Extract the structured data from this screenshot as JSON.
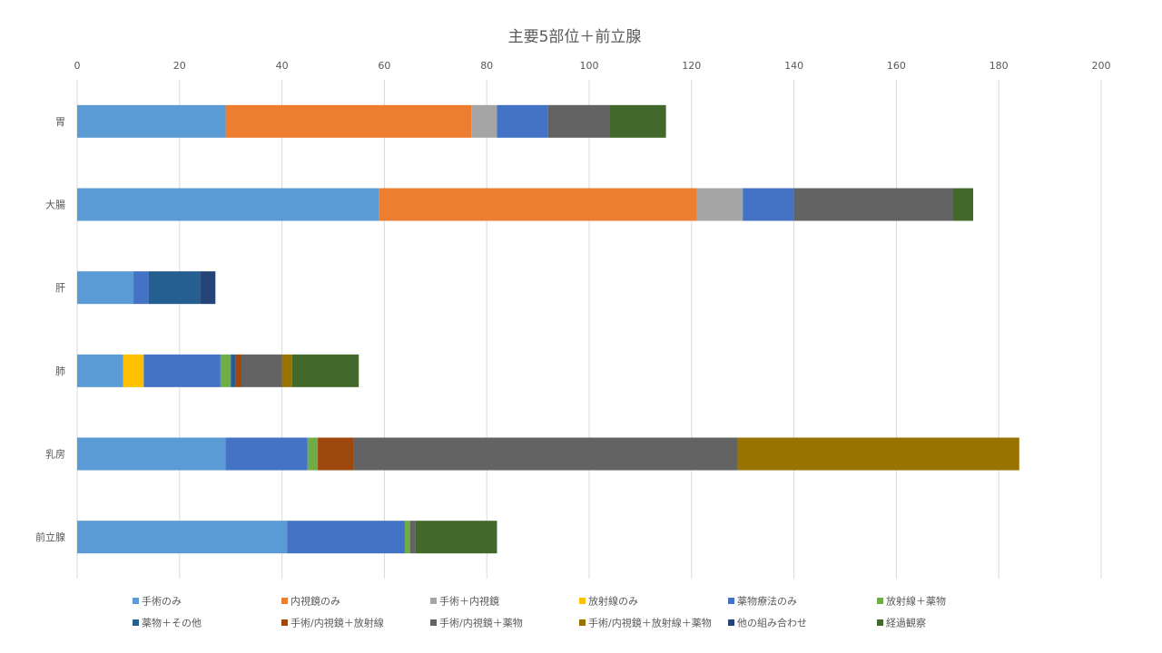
{
  "chart_data": {
    "type": "bar",
    "orientation": "horizontal",
    "stacked": true,
    "title": "主要5部位＋前立腺",
    "categories": [
      "胃",
      "大腸",
      "肝",
      "肺",
      "乳房",
      "前立腺"
    ],
    "xlim": [
      0,
      200
    ],
    "x_ticks": [
      "0",
      "20",
      "40",
      "60",
      "80",
      "100",
      "120",
      "140",
      "160",
      "180",
      "200"
    ],
    "grid": true,
    "legend_position": "bottom",
    "series": [
      {
        "name": "手術のみ",
        "color": "#5B9BD5",
        "values": [
          29,
          59,
          11,
          9,
          29,
          41
        ]
      },
      {
        "name": "内視鏡のみ",
        "color": "#ED7D31",
        "values": [
          48,
          62,
          0,
          0,
          0,
          0
        ]
      },
      {
        "name": "手術＋内視鏡",
        "color": "#A5A5A5",
        "values": [
          5,
          9,
          0,
          0,
          0,
          0
        ]
      },
      {
        "name": "放射線のみ",
        "color": "#FFC000",
        "values": [
          0,
          0,
          0,
          4,
          0,
          0
        ]
      },
      {
        "name": "薬物療法のみ",
        "color": "#4472C4",
        "values": [
          10,
          10,
          3,
          15,
          16,
          23
        ]
      },
      {
        "name": "放射線＋薬物",
        "color": "#70AD47",
        "values": [
          0,
          0,
          0,
          2,
          2,
          1
        ]
      },
      {
        "name": "薬物＋その他",
        "color": "#255E91",
        "values": [
          0,
          0,
          10,
          1,
          0,
          0
        ]
      },
      {
        "name": "手術/内視鏡＋放射線",
        "color": "#9E480E",
        "values": [
          0,
          0,
          0,
          1,
          7,
          0
        ]
      },
      {
        "name": "手術/内視鏡＋薬物",
        "color": "#636363",
        "values": [
          12,
          31,
          0,
          8,
          75,
          1
        ]
      },
      {
        "name": "手術/内視鏡＋放射線＋薬物",
        "color": "#997300",
        "values": [
          0,
          0,
          0,
          2,
          55,
          0
        ]
      },
      {
        "name": "他の組み合わせ",
        "color": "#264478",
        "values": [
          0,
          0,
          3,
          0,
          0,
          0
        ]
      },
      {
        "name": "経過観察",
        "color": "#43682B",
        "values": [
          11,
          4,
          0,
          13,
          0,
          16
        ]
      }
    ]
  }
}
